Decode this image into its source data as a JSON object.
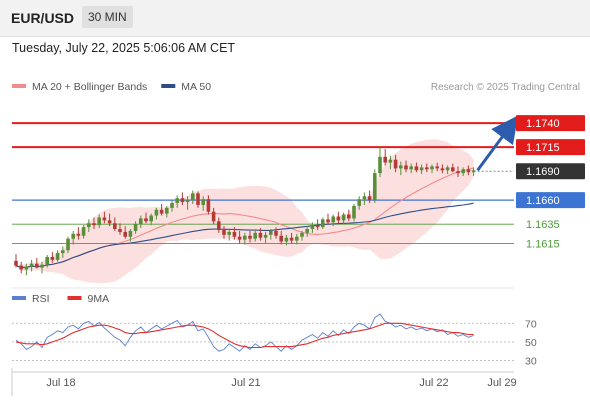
{
  "header": {
    "pair": "EUR/USD",
    "interval": "30 MIN",
    "datetime": "Tuesday, July 22, 2025 5:06:06 AM CET"
  },
  "colors": {
    "resistance": "#e21b1b",
    "support": "#3c74d4",
    "target_support": "#4d9a3a",
    "ma20": "#f28b8b",
    "ma50": "#2d4f86",
    "bollinger_fill": "#f9c6c6",
    "candle_up": "#5a8f3a",
    "candle_down": "#b43a36",
    "arrow": "#2c5cad",
    "rsi": "#5b7fcf",
    "rsi_ma": "#e03030",
    "current_price_bg": "#333333"
  },
  "chart_data": [
    {
      "type": "candlestick",
      "legend": [
        {
          "name": "MA 20 + Bollinger Bands",
          "color": "#f28b8b"
        },
        {
          "name": "MA 50",
          "color": "#2d4f86"
        }
      ],
      "source": "Research © 2025 Trading Central",
      "ylim": [
        1.1575,
        1.1765
      ],
      "levels": [
        {
          "value": 1.174,
          "label": "1.1740",
          "kind": "resistance"
        },
        {
          "value": 1.1715,
          "label": "1.1715",
          "kind": "resistance"
        },
        {
          "value": 1.169,
          "label": "1.1690",
          "kind": "current"
        },
        {
          "value": 1.166,
          "label": "1.1660",
          "kind": "support"
        },
        {
          "value": 1.1635,
          "label": "1.1635",
          "kind": "target"
        },
        {
          "value": 1.1615,
          "label": "1.1615",
          "kind": "target"
        }
      ],
      "x_ticks": [
        "Jul 18",
        "Jul 21",
        "Jul 22",
        "Jul 29"
      ],
      "forecast_arrow": {
        "from": 1.1691,
        "to": 1.174
      },
      "candles": [
        [
          1.1597,
          1.1604,
          1.159,
          1.1592
        ],
        [
          1.1592,
          1.1596,
          1.1584,
          1.1588
        ],
        [
          1.1588,
          1.1594,
          1.1582,
          1.1591
        ],
        [
          1.1591,
          1.1598,
          1.1586,
          1.1594
        ],
        [
          1.1594,
          1.16,
          1.1589,
          1.159
        ],
        [
          1.159,
          1.1596,
          1.1584,
          1.1593
        ],
        [
          1.1593,
          1.1603,
          1.159,
          1.1601
        ],
        [
          1.1601,
          1.1606,
          1.1595,
          1.1598
        ],
        [
          1.1598,
          1.1608,
          1.1596,
          1.1605
        ],
        [
          1.1605,
          1.1612,
          1.16,
          1.1608
        ],
        [
          1.1608,
          1.1622,
          1.1605,
          1.162
        ],
        [
          1.162,
          1.1628,
          1.1614,
          1.1625
        ],
        [
          1.1625,
          1.1632,
          1.1619,
          1.1623
        ],
        [
          1.1623,
          1.1634,
          1.162,
          1.1632
        ],
        [
          1.1632,
          1.164,
          1.1627,
          1.1636
        ],
        [
          1.1636,
          1.1642,
          1.163,
          1.1634
        ],
        [
          1.1634,
          1.1645,
          1.1631,
          1.1642
        ],
        [
          1.1642,
          1.1648,
          1.1636,
          1.1639
        ],
        [
          1.1639,
          1.1646,
          1.1633,
          1.1636
        ],
        [
          1.1636,
          1.1642,
          1.1628,
          1.163
        ],
        [
          1.163,
          1.1636,
          1.1624,
          1.1627
        ],
        [
          1.1627,
          1.1633,
          1.162,
          1.1622
        ],
        [
          1.1622,
          1.163,
          1.1617,
          1.1628
        ],
        [
          1.1628,
          1.1638,
          1.1625,
          1.1635
        ],
        [
          1.1635,
          1.1644,
          1.1631,
          1.1641
        ],
        [
          1.1641,
          1.1647,
          1.1636,
          1.1638
        ],
        [
          1.1638,
          1.1646,
          1.1634,
          1.1644
        ],
        [
          1.1644,
          1.1652,
          1.164,
          1.165
        ],
        [
          1.165,
          1.1656,
          1.1644,
          1.1646
        ],
        [
          1.1646,
          1.1654,
          1.1642,
          1.1652
        ],
        [
          1.1652,
          1.166,
          1.1648,
          1.1657
        ],
        [
          1.1657,
          1.1665,
          1.1652,
          1.1662
        ],
        [
          1.1662,
          1.1668,
          1.1655,
          1.1658
        ],
        [
          1.1658,
          1.1664,
          1.165,
          1.166
        ],
        [
          1.166,
          1.167,
          1.1656,
          1.1667
        ],
        [
          1.1667,
          1.1669,
          1.1652,
          1.1655
        ],
        [
          1.1655,
          1.1664,
          1.1649,
          1.1661
        ],
        [
          1.1661,
          1.1665,
          1.1645,
          1.1648
        ],
        [
          1.1648,
          1.1652,
          1.1635,
          1.1638
        ],
        [
          1.1638,
          1.1642,
          1.1626,
          1.1629
        ],
        [
          1.1629,
          1.1633,
          1.162,
          1.1624
        ],
        [
          1.1624,
          1.163,
          1.1618,
          1.1627
        ],
        [
          1.1627,
          1.1632,
          1.1619,
          1.1622
        ],
        [
          1.1622,
          1.1628,
          1.1615,
          1.1619
        ],
        [
          1.1619,
          1.1626,
          1.1614,
          1.1623
        ],
        [
          1.1623,
          1.1628,
          1.1616,
          1.162
        ],
        [
          1.162,
          1.1629,
          1.1617,
          1.1626
        ],
        [
          1.1626,
          1.1631,
          1.1618,
          1.1621
        ],
        [
          1.1621,
          1.1627,
          1.1615,
          1.1624
        ],
        [
          1.1624,
          1.163,
          1.1619,
          1.1628
        ],
        [
          1.1628,
          1.1632,
          1.162,
          1.1623
        ],
        [
          1.1623,
          1.1628,
          1.1614,
          1.1617
        ],
        [
          1.1617,
          1.1624,
          1.1613,
          1.1621
        ],
        [
          1.1621,
          1.1626,
          1.1615,
          1.1618
        ],
        [
          1.1618,
          1.1625,
          1.1614,
          1.1622
        ],
        [
          1.1622,
          1.1628,
          1.1618,
          1.1626
        ],
        [
          1.1626,
          1.1633,
          1.1622,
          1.163
        ],
        [
          1.163,
          1.1637,
          1.1626,
          1.1634
        ],
        [
          1.1634,
          1.164,
          1.1629,
          1.1632
        ],
        [
          1.1632,
          1.1642,
          1.163,
          1.164
        ],
        [
          1.164,
          1.1646,
          1.1635,
          1.1637
        ],
        [
          1.1637,
          1.1645,
          1.1633,
          1.1643
        ],
        [
          1.1643,
          1.1648,
          1.1636,
          1.1639
        ],
        [
          1.1639,
          1.1647,
          1.1635,
          1.1645
        ],
        [
          1.1645,
          1.165,
          1.1638,
          1.1641
        ],
        [
          1.1641,
          1.1656,
          1.1638,
          1.1654
        ],
        [
          1.1654,
          1.1664,
          1.165,
          1.1661
        ],
        [
          1.1661,
          1.1668,
          1.1655,
          1.1664
        ],
        [
          1.1664,
          1.167,
          1.1657,
          1.166
        ],
        [
          1.166,
          1.1692,
          1.1657,
          1.1688
        ],
        [
          1.1688,
          1.1716,
          1.1684,
          1.1705
        ],
        [
          1.1705,
          1.1713,
          1.1696,
          1.1699
        ],
        [
          1.1699,
          1.1706,
          1.1692,
          1.1702
        ],
        [
          1.1702,
          1.1707,
          1.1689,
          1.1693
        ],
        [
          1.1693,
          1.17,
          1.1686,
          1.1696
        ],
        [
          1.1696,
          1.1701,
          1.1689,
          1.1692
        ],
        [
          1.1692,
          1.1698,
          1.1688,
          1.1695
        ],
        [
          1.1695,
          1.1699,
          1.1689,
          1.1691
        ],
        [
          1.1691,
          1.1697,
          1.1687,
          1.1694
        ],
        [
          1.1694,
          1.1698,
          1.1689,
          1.1692
        ],
        [
          1.1692,
          1.1697,
          1.1688,
          1.1695
        ],
        [
          1.1695,
          1.1699,
          1.169,
          1.1693
        ],
        [
          1.1693,
          1.1697,
          1.1688,
          1.1691
        ],
        [
          1.1691,
          1.1696,
          1.1687,
          1.1694
        ],
        [
          1.1694,
          1.1698,
          1.1689,
          1.169
        ],
        [
          1.169,
          1.1695,
          1.1684,
          1.1688
        ],
        [
          1.1688,
          1.1694,
          1.1685,
          1.1692
        ],
        [
          1.1692,
          1.1696,
          1.1686,
          1.1689
        ],
        [
          1.1689,
          1.1694,
          1.1685,
          1.1691
        ]
      ]
    },
    {
      "type": "line",
      "legend": [
        {
          "name": "RSI",
          "color": "#5b7fcf"
        },
        {
          "name": "9MA",
          "color": "#e03030"
        }
      ],
      "ylim": [
        22,
        80
      ],
      "y_ticks": [
        "70",
        "50",
        "30"
      ],
      "series": [
        {
          "name": "RSI",
          "values": [
            52,
            48,
            42,
            45,
            50,
            44,
            55,
            58,
            62,
            60,
            66,
            68,
            64,
            70,
            72,
            67,
            71,
            65,
            60,
            55,
            52,
            46,
            55,
            62,
            66,
            60,
            64,
            68,
            64,
            67,
            70,
            73,
            66,
            68,
            72,
            62,
            64,
            55,
            45,
            40,
            42,
            48,
            44,
            40,
            46,
            42,
            48,
            44,
            46,
            50,
            45,
            40,
            46,
            42,
            46,
            52,
            55,
            58,
            54,
            60,
            56,
            62,
            57,
            63,
            59,
            66,
            70,
            68,
            64,
            76,
            80,
            72,
            70,
            66,
            68,
            64,
            66,
            63,
            65,
            62,
            64,
            61,
            63,
            58,
            60,
            56,
            58,
            55,
            57
          ]
        },
        {
          "name": "9MA",
          "values": [
            50,
            49,
            48,
            48,
            48,
            47,
            48,
            50,
            52,
            54,
            57,
            60,
            62,
            64,
            66,
            67,
            68,
            68,
            67,
            65,
            63,
            60,
            59,
            59,
            60,
            60,
            61,
            62,
            63,
            64,
            65,
            66,
            67,
            68,
            68,
            67,
            66,
            64,
            61,
            57,
            54,
            51,
            48,
            46,
            45,
            44,
            44,
            44,
            45,
            45,
            45,
            45,
            45,
            45,
            46,
            47,
            48,
            50,
            52,
            54,
            55,
            57,
            58,
            59,
            60,
            61,
            62,
            63,
            64,
            66,
            68,
            70,
            70,
            70,
            70,
            69,
            68,
            67,
            66,
            65,
            64,
            63,
            62,
            61,
            60,
            60,
            59,
            58,
            58
          ]
        }
      ]
    }
  ]
}
